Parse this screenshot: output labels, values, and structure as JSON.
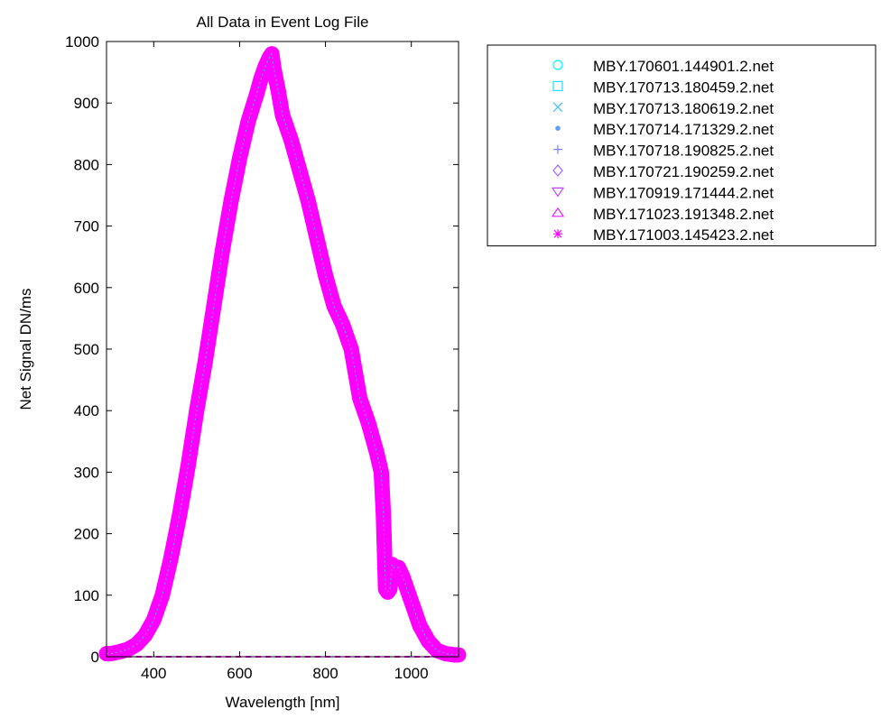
{
  "chart_data": {
    "type": "scatter",
    "title": "All Data in Event Log File",
    "xlabel": "Wavelength [nm]",
    "ylabel": "Net Signal DN/ms",
    "xlim": [
      290,
      1110
    ],
    "ylim": [
      0,
      1000
    ],
    "xticks": [
      400,
      600,
      800,
      1000
    ],
    "yticks": [
      0,
      100,
      200,
      300,
      400,
      500,
      600,
      700,
      800,
      900,
      1000
    ],
    "grid": false,
    "legend_position": "outside-top-right",
    "series": [
      {
        "name": "MBY.170601.144901.2.net",
        "marker": "circle",
        "color": "#00ffff"
      },
      {
        "name": "MBY.170713.180459.2.net",
        "marker": "square",
        "color": "#1fe0ff"
      },
      {
        "name": "MBY.170713.180619.2.net",
        "marker": "x",
        "color": "#40bfff"
      },
      {
        "name": "MBY.170714.171329.2.net",
        "marker": "dot",
        "color": "#609fff"
      },
      {
        "name": "MBY.170718.190825.2.net",
        "marker": "plus",
        "color": "#8080ff"
      },
      {
        "name": "MBY.170721.190259.2.net",
        "marker": "diamond",
        "color": "#a060ff"
      },
      {
        "name": "MBY.170919.171444.2.net",
        "marker": "triangle-down",
        "color": "#bf40ff"
      },
      {
        "name": "MBY.171023.191348.2.net",
        "marker": "triangle-up",
        "color": "#df20ff"
      },
      {
        "name": "MBY.171003.145423.2.net",
        "marker": "asterisk",
        "color": "#ff00ff"
      }
    ],
    "spectrum": {
      "x": [
        290,
        300,
        320,
        340,
        360,
        380,
        400,
        420,
        440,
        460,
        480,
        500,
        520,
        540,
        560,
        580,
        600,
        620,
        640,
        650,
        660,
        670,
        675,
        680,
        690,
        700,
        720,
        740,
        760,
        780,
        800,
        820,
        840,
        860,
        870,
        880,
        900,
        920,
        930,
        935,
        940,
        945,
        950,
        955,
        960,
        970,
        980,
        1000,
        1020,
        1040,
        1060,
        1080,
        1100,
        1110
      ],
      "y": [
        5,
        5,
        8,
        12,
        20,
        35,
        60,
        100,
        160,
        230,
        310,
        400,
        480,
        570,
        660,
        740,
        810,
        870,
        915,
        940,
        960,
        975,
        980,
        955,
        920,
        880,
        840,
        790,
        740,
        680,
        620,
        570,
        540,
        500,
        460,
        420,
        380,
        330,
        300,
        230,
        110,
        105,
        110,
        150,
        145,
        145,
        130,
        90,
        50,
        25,
        10,
        5,
        3,
        3
      ],
      "baseline_y": 0
    }
  }
}
